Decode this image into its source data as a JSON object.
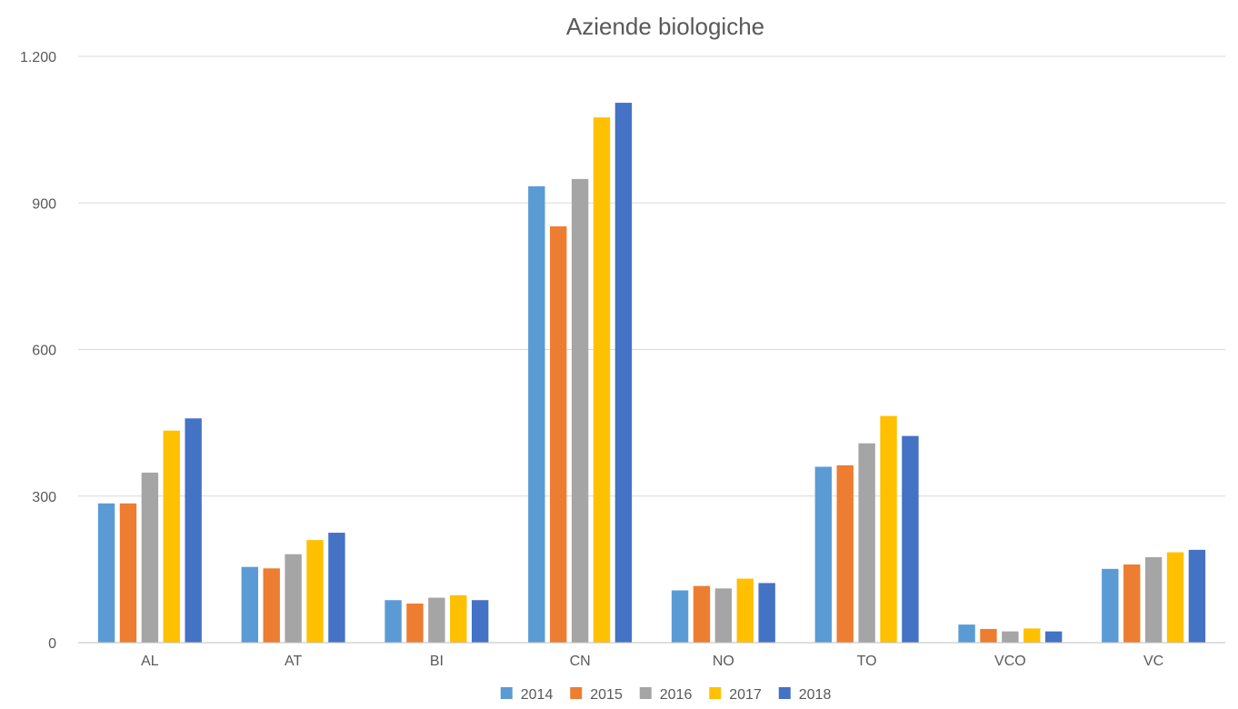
{
  "chart_data": {
    "type": "bar",
    "title": "Aziende biologiche",
    "xlabel": "",
    "ylabel": "",
    "categories": [
      "AL",
      "AT",
      "BI",
      "CN",
      "NO",
      "TO",
      "VCO",
      "VC"
    ],
    "ylim": [
      0,
      1200
    ],
    "yticks": [
      0,
      300,
      600,
      900,
      1200
    ],
    "ytick_labels": [
      "0",
      "300",
      "600",
      "900",
      "1.200"
    ],
    "grid": true,
    "legend_position": "bottom",
    "series": [
      {
        "name": "2014",
        "color": "#5B9BD5",
        "values": [
          285,
          155,
          87,
          934,
          107,
          360,
          37,
          151
        ]
      },
      {
        "name": "2015",
        "color": "#ED7D31",
        "values": [
          285,
          152,
          80,
          852,
          116,
          363,
          28,
          160
        ]
      },
      {
        "name": "2016",
        "color": "#A5A5A5",
        "values": [
          348,
          181,
          92,
          949,
          111,
          408,
          23,
          175
        ]
      },
      {
        "name": "2017",
        "color": "#FFC000",
        "values": [
          434,
          210,
          97,
          1075,
          131,
          464,
          29,
          185
        ]
      },
      {
        "name": "2018",
        "color": "#4472C4",
        "values": [
          459,
          225,
          87,
          1105,
          122,
          423,
          23,
          190
        ]
      }
    ]
  }
}
